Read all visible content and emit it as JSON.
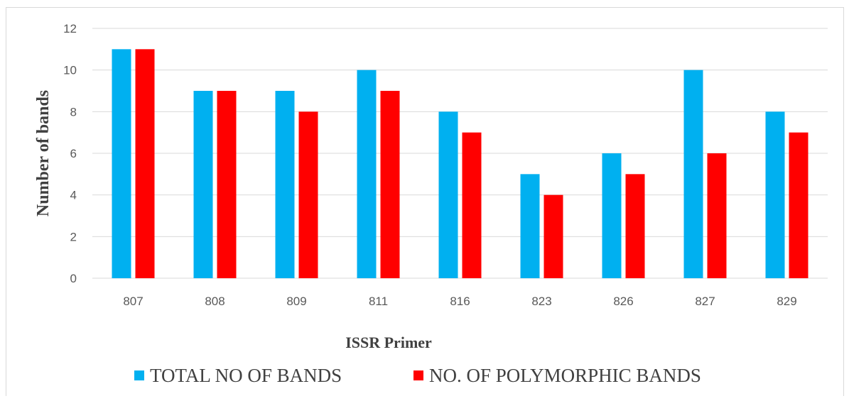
{
  "chart_data": {
    "type": "bar",
    "title": "",
    "xlabel": "ISSR Primer",
    "ylabel": "Number of bands",
    "ylim": [
      0,
      12
    ],
    "yticks": [
      0,
      2,
      4,
      6,
      8,
      10,
      12
    ],
    "grid": true,
    "legend_position": "bottom",
    "categories": [
      "807",
      "808",
      "809",
      "811",
      "816",
      "823",
      "826",
      "827",
      "829"
    ],
    "series": [
      {
        "name": "TOTAL NO OF BANDS",
        "color": "#00b0f0",
        "values": [
          11,
          9,
          9,
          10,
          8,
          5,
          6,
          10,
          8
        ]
      },
      {
        "name": "NO. OF POLYMORPHIC BANDS",
        "color": "#ff0000",
        "values": [
          11,
          9,
          8,
          9,
          7,
          4,
          5,
          6,
          7
        ]
      }
    ]
  }
}
